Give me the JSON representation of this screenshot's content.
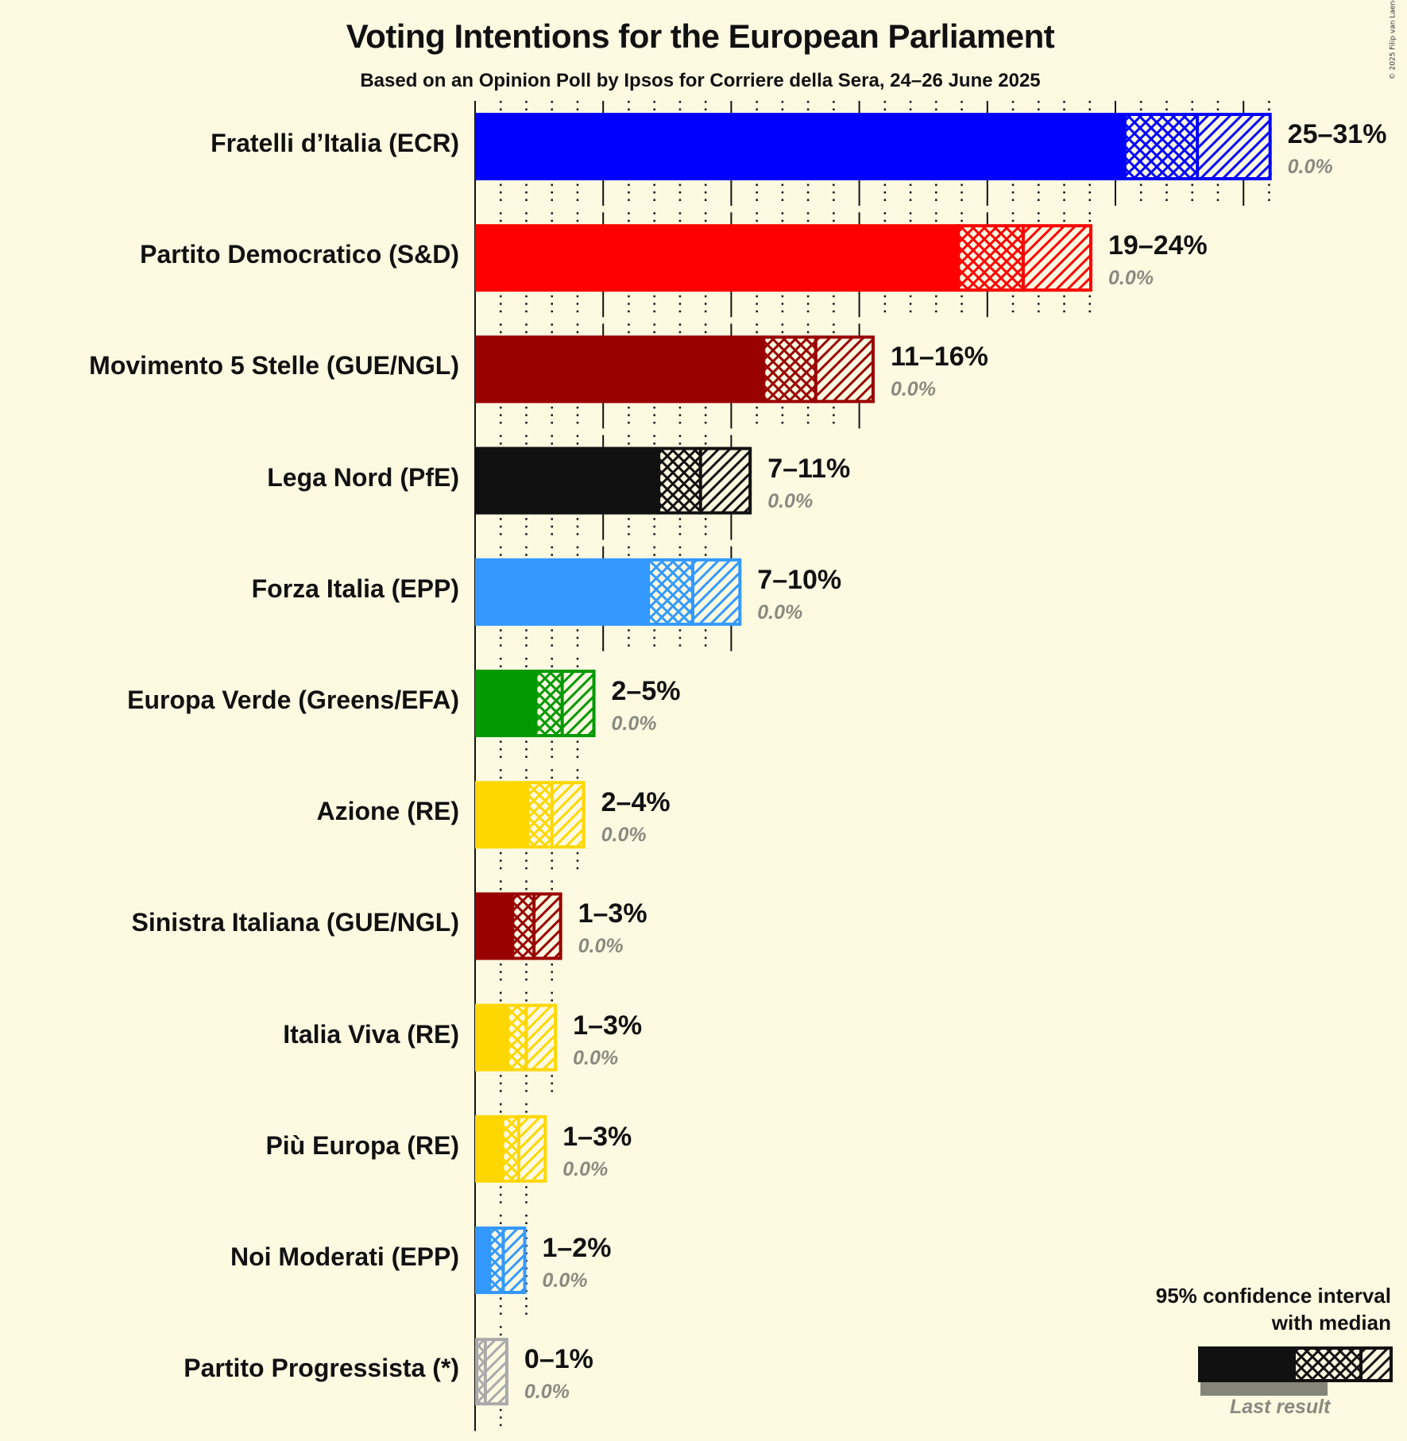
{
  "header": {
    "title": "Voting Intentions for the European Parliament",
    "subtitle": "Based on an Opinion Poll by Ipsos for Corriere della Sera, 24–26 June 2025",
    "copyright": "© 2025 Filip van Laenen"
  },
  "legend": {
    "line1": "95% confidence interval",
    "line2": "with median",
    "last_result": "Last result"
  },
  "chart_data": {
    "type": "bar",
    "orientation": "horizontal",
    "title": "Voting Intentions for the European Parliament",
    "subtitle": "Based on an Opinion Poll by Ipsos for Corriere della Sera, 24–26 June 2025",
    "xlabel": "",
    "ylabel": "",
    "xlim": [
      0,
      32
    ],
    "grid": {
      "major_every": 5,
      "minor_every": 1
    },
    "legend_position": "bottom-right",
    "categories": [
      "Fratelli d’Italia (ECR)",
      "Partito Democratico (S&D)",
      "Movimento 5 Stelle (GUE/NGL)",
      "Lega Nord (PfE)",
      "Forza Italia (EPP)",
      "Europa Verde (Greens/EFA)",
      "Azione (RE)",
      "Sinistra Italiana (GUE/NGL)",
      "Italia Viva (RE)",
      "Più Europa (RE)",
      "Noi Moderati (EPP)",
      "Partito Progressista (*)"
    ],
    "series": [
      {
        "name": "ci_low",
        "values": [
          25.4,
          18.9,
          11.3,
          7.2,
          6.8,
          2.4,
          2.1,
          1.5,
          1.3,
          1.1,
          0.6,
          0.1
        ]
      },
      {
        "name": "median",
        "values": [
          28.2,
          21.4,
          13.3,
          8.8,
          8.5,
          3.4,
          3.0,
          2.3,
          2.0,
          1.7,
          1.1,
          0.4
        ]
      },
      {
        "name": "ci_high",
        "values": [
          31.1,
          24.1,
          15.6,
          10.8,
          10.4,
          4.7,
          4.3,
          3.4,
          3.2,
          2.8,
          2.0,
          1.3
        ]
      },
      {
        "name": "last_result",
        "values": [
          0,
          0,
          0,
          0,
          0,
          0,
          0,
          0,
          0,
          0,
          0,
          0
        ]
      }
    ],
    "range_labels": [
      "25–31%",
      "19–24%",
      "11–16%",
      "7–11%",
      "7–10%",
      "2–5%",
      "2–4%",
      "1–3%",
      "1–3%",
      "1–3%",
      "1–2%",
      "0–1%"
    ],
    "last_result_labels": [
      "0.0%",
      "0.0%",
      "0.0%",
      "0.0%",
      "0.0%",
      "0.0%",
      "0.0%",
      "0.0%",
      "0.0%",
      "0.0%",
      "0.0%",
      "0.0%"
    ],
    "colors": [
      "#0000FF",
      "#FF0000",
      "#990000",
      "#111111",
      "#3399FF",
      "#009900",
      "#FFD700",
      "#990000",
      "#FFD700",
      "#FFD700",
      "#3399FF",
      "#AAAAAA"
    ]
  }
}
